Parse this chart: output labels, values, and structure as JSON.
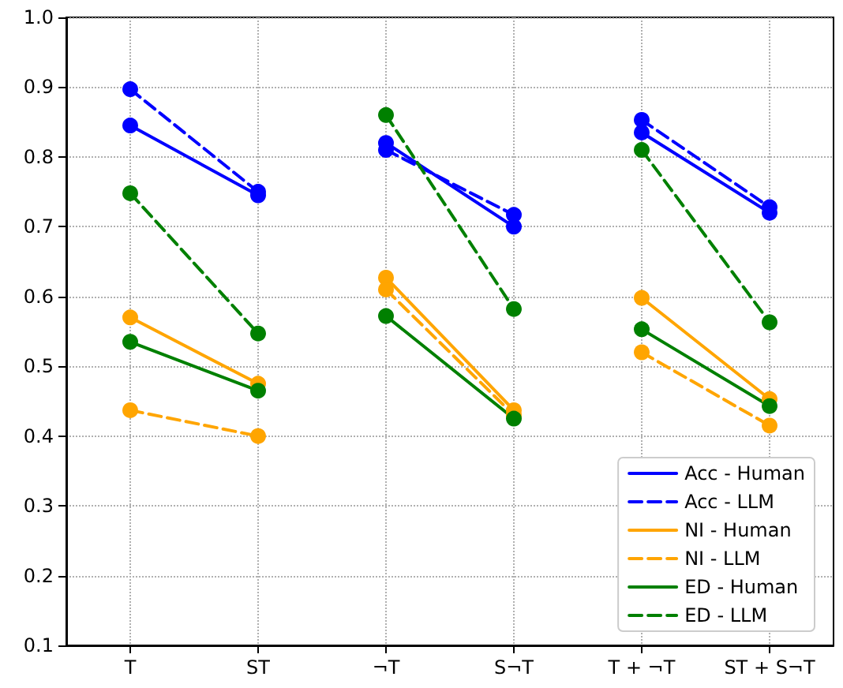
{
  "chart_data": {
    "type": "line",
    "categories": [
      "T",
      "ST",
      "¬T",
      "S¬T",
      "T + ¬T",
      "ST + S¬T"
    ],
    "ylim": [
      0.1,
      1.0
    ],
    "yticks": [
      {
        "value": 0.1,
        "label": "0.1"
      },
      {
        "value": 0.2,
        "label": "0.2"
      },
      {
        "value": 0.3,
        "label": "0.3"
      },
      {
        "value": 0.4,
        "label": "0.4"
      },
      {
        "value": 0.5,
        "label": "0.5"
      },
      {
        "value": 0.6,
        "label": "0.6"
      },
      {
        "value": 0.7,
        "label": "0.7"
      },
      {
        "value": 0.8,
        "label": "0.8"
      },
      {
        "value": 0.9,
        "label": "0.9"
      },
      {
        "value": 1.0,
        "label": "1.0"
      }
    ],
    "grid": true,
    "legend": "bottom right",
    "marker": "circle",
    "series": [
      {
        "name": "Acc - Human",
        "color": "#0000ff",
        "line_style": "solid",
        "values": [
          0.845,
          0.745,
          0.82,
          0.7,
          0.835,
          0.72
        ]
      },
      {
        "name": "Acc - LLM",
        "color": "#0000ff",
        "line_style": "dashed",
        "values": [
          0.897,
          0.75,
          0.81,
          0.717,
          0.853,
          0.728
        ]
      },
      {
        "name": "NI - Human",
        "color": "#ffa500",
        "line_style": "solid",
        "values": [
          0.57,
          0.475,
          0.627,
          0.437,
          0.598,
          0.453
        ]
      },
      {
        "name": "NI - LLM",
        "color": "#ffa500",
        "line_style": "dashed",
        "values": [
          0.437,
          0.4,
          0.61,
          0.43,
          0.52,
          0.415
        ]
      },
      {
        "name": "ED - Human",
        "color": "#008000",
        "line_style": "solid",
        "values": [
          0.535,
          0.465,
          0.572,
          0.425,
          0.553,
          0.443
        ]
      },
      {
        "name": "ED - LLM",
        "color": "#008000",
        "line_style": "dashed",
        "values": [
          0.748,
          0.547,
          0.86,
          0.582,
          0.81,
          0.563
        ]
      }
    ]
  }
}
